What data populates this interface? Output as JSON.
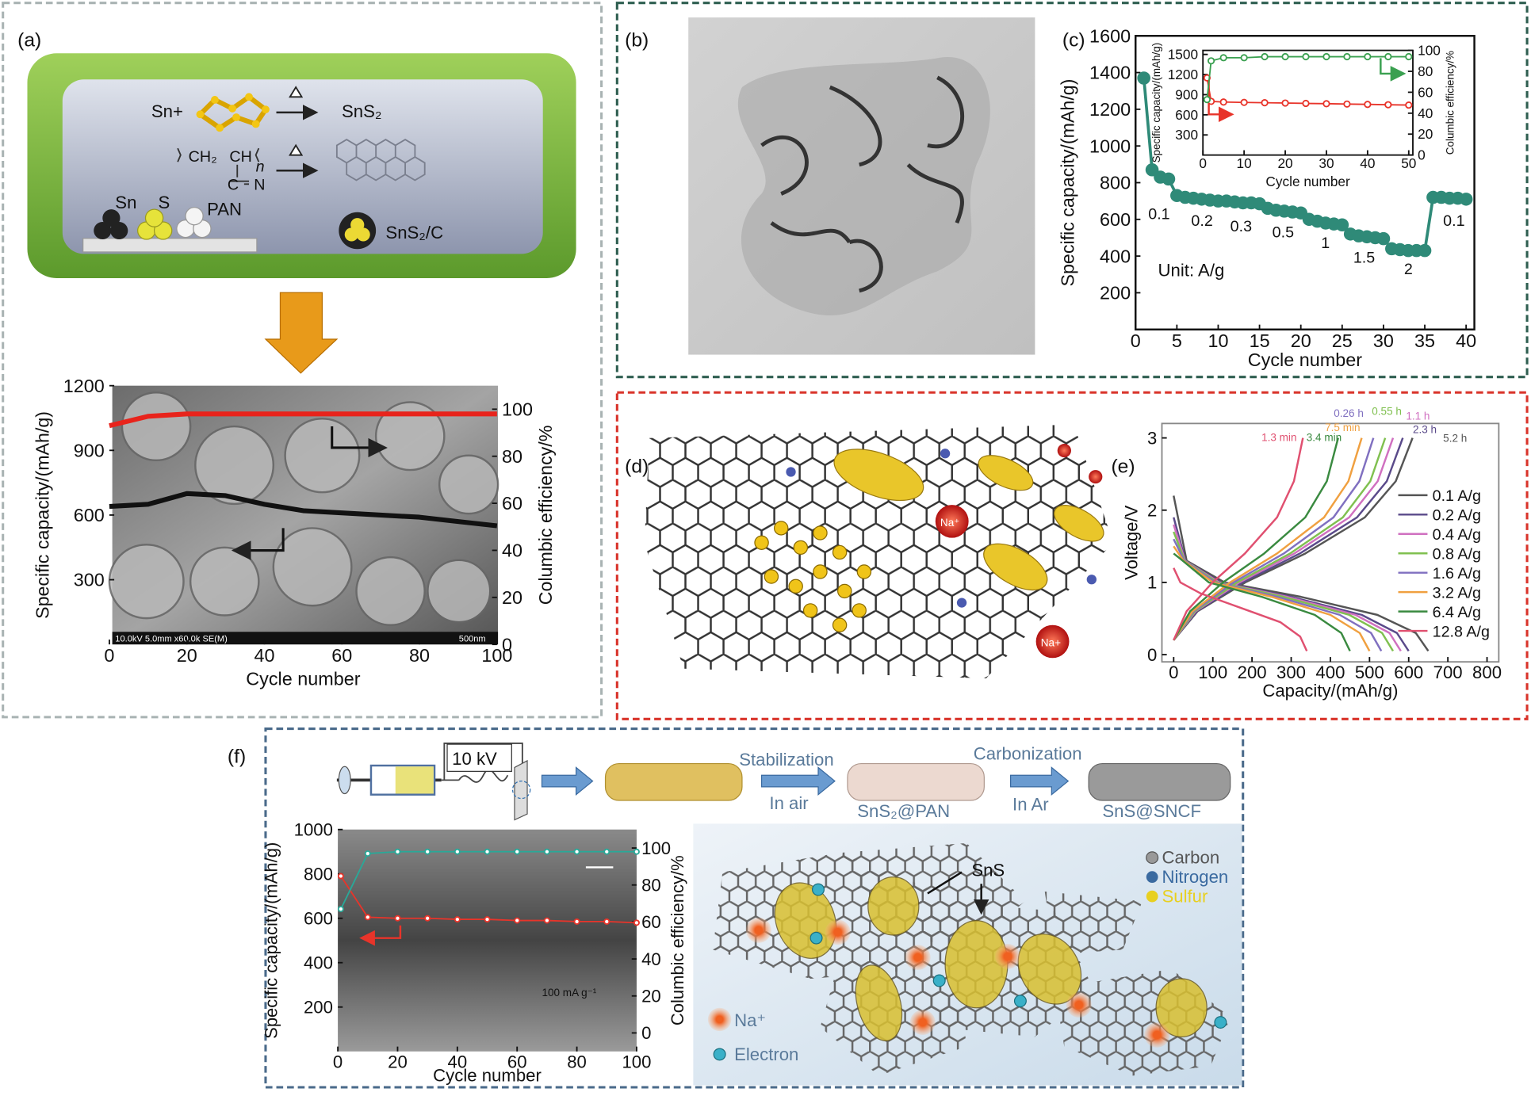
{
  "chart_data": [
    {
      "type": "line",
      "xlabel": "Cycle number",
      "ylabel": "Specific capacity/(mAh/g)",
      "y2label": "Columbic efficiency/%",
      "x": [
        0,
        10,
        20,
        30,
        40,
        50,
        60,
        70,
        80,
        90,
        100
      ],
      "xlim": [
        0,
        100
      ],
      "xticks": [
        0,
        20,
        40,
        60,
        80,
        100
      ],
      "ylim": [
        0,
        1200
      ],
      "yticks": [
        300,
        600,
        900,
        1200
      ],
      "y2lim": [
        0,
        110
      ],
      "y2ticks": [
        0,
        20,
        40,
        60,
        80,
        100
      ],
      "series": [
        {
          "color": "#111111",
          "values": [
            640,
            650,
            700,
            690,
            650,
            620,
            610,
            600,
            590,
            570,
            550
          ]
        },
        {
          "color": "#e8231b",
          "axis": "y2",
          "values": [
            93,
            97,
            98,
            98,
            98,
            98,
            98,
            98,
            98,
            98,
            98
          ]
        }
      ]
    },
    {
      "type": "line",
      "xlabel": "Cycle number",
      "ylabel": "Specific capacity/(mAh/g)",
      "marker": "circle",
      "x": [
        1,
        2,
        3,
        4,
        5,
        6,
        7,
        8,
        9,
        10,
        11,
        12,
        13,
        14,
        15,
        16,
        17,
        18,
        19,
        20,
        21,
        22,
        23,
        24,
        25,
        26,
        27,
        28,
        29,
        30,
        31,
        32,
        33,
        34,
        35,
        36,
        37,
        38,
        39,
        40
      ],
      "xlim": [
        0,
        41
      ],
      "xticks": [
        0,
        5,
        10,
        15,
        20,
        25,
        30,
        35,
        40
      ],
      "ylim": [
        0,
        1600
      ],
      "yticks": [
        200,
        400,
        600,
        800,
        1000,
        1200,
        1400,
        1600
      ],
      "series": [
        {
          "color": "#2f8a78",
          "values": [
            1370,
            870,
            830,
            820,
            730,
            720,
            715,
            710,
            705,
            700,
            700,
            695,
            690,
            690,
            685,
            660,
            650,
            645,
            640,
            635,
            600,
            590,
            580,
            575,
            570,
            520,
            510,
            505,
            500,
            495,
            440,
            435,
            430,
            430,
            430,
            720,
            720,
            715,
            715,
            710
          ]
        }
      ],
      "annotations": [
        "0.1",
        "0.2",
        "0.3",
        "0.5",
        "1",
        "1.5",
        "2",
        "0.1",
        "Unit: A/g"
      ]
    },
    {
      "type": "line",
      "xlabel": "Cycle number",
      "ylabel": "Specific capacity/(mAh/g)",
      "y2label": "Columbic efficiency/%",
      "marker": "circle",
      "x": [
        1,
        2,
        5,
        10,
        15,
        20,
        25,
        30,
        35,
        40,
        45,
        50
      ],
      "xlim": [
        0,
        51
      ],
      "xticks": [
        0,
        10,
        20,
        30,
        40,
        50
      ],
      "ylim": [
        0,
        1560
      ],
      "yticks": [
        300,
        600,
        900,
        1200,
        1500
      ],
      "y2lim": [
        0,
        100
      ],
      "y2ticks": [
        0,
        20,
        40,
        60,
        80,
        100
      ],
      "series": [
        {
          "color": "#e8342a",
          "values": [
            1150,
            800,
            790,
            785,
            780,
            775,
            770,
            765,
            760,
            755,
            750,
            745
          ]
        },
        {
          "color": "#3aa050",
          "axis": "y2",
          "values": [
            53,
            90,
            93,
            93,
            94,
            94,
            94,
            94,
            94,
            94,
            94,
            94
          ]
        }
      ]
    },
    {
      "type": "line",
      "xlabel": "Capacity/(mAh/g)",
      "ylabel": "Voltage/V",
      "xlim": [
        -30,
        830
      ],
      "xticks": [
        0,
        100,
        200,
        300,
        400,
        500,
        600,
        700,
        800
      ],
      "ylim": [
        -0.1,
        3.2
      ],
      "yticks": [
        0,
        1,
        2,
        3
      ],
      "series": [
        {
          "name": "0.1 A/g",
          "color": "#555555",
          "x": [
            0,
            33,
            130,
            325,
            520,
            618,
            650,
            null,
            0,
            61,
            183,
            336,
            488,
            567,
            610
          ],
          "values": [
            2.2,
            1.3,
            1.0,
            0.8,
            0.55,
            0.3,
            0.05,
            null,
            0.2,
            0.6,
            1.0,
            1.4,
            1.9,
            2.4,
            3.0
          ]
        },
        {
          "name": "0.2 A/g",
          "color": "#5a4a8a",
          "x": [
            0,
            30,
            120,
            300,
            480,
            570,
            600,
            null,
            0,
            59,
            176,
            322,
            468,
            544,
            585
          ],
          "values": [
            1.9,
            1.3,
            1.0,
            0.8,
            0.55,
            0.3,
            0.05,
            null,
            0.2,
            0.6,
            1.0,
            1.4,
            1.9,
            2.4,
            3.0
          ]
        },
        {
          "name": "0.4 A/g",
          "color": "#d070c0",
          "x": [
            0,
            29,
            116,
            290,
            464,
            551,
            580,
            null,
            0,
            56,
            168,
            308,
            448,
            521,
            560
          ],
          "values": [
            1.8,
            1.3,
            1.0,
            0.8,
            0.55,
            0.3,
            0.05,
            null,
            0.2,
            0.6,
            1.0,
            1.4,
            1.9,
            2.4,
            3.0
          ]
        },
        {
          "name": "0.8 A/g",
          "color": "#80c050",
          "x": [
            0,
            28,
            112,
            280,
            448,
            532,
            560,
            null,
            0,
            54,
            162,
            297,
            432,
            502,
            540
          ],
          "values": [
            1.7,
            1.3,
            1.0,
            0.8,
            0.55,
            0.3,
            0.05,
            null,
            0.2,
            0.6,
            1.0,
            1.4,
            1.9,
            2.4,
            3.0
          ]
        },
        {
          "name": "1.6 A/g",
          "color": "#8070c0",
          "x": [
            0,
            27,
            106,
            265,
            424,
            504,
            530,
            null,
            0,
            51,
            153,
            281,
            408,
            474,
            510
          ],
          "values": [
            1.6,
            1.3,
            1.0,
            0.8,
            0.55,
            0.3,
            0.05,
            null,
            0.2,
            0.6,
            1.0,
            1.4,
            1.9,
            2.4,
            3.0
          ]
        },
        {
          "name": "3.2 A/g",
          "color": "#f0a040",
          "x": [
            0,
            25,
            100,
            250,
            400,
            475,
            500,
            null,
            0,
            48,
            144,
            264,
            384,
            446,
            480
          ],
          "values": [
            1.5,
            1.3,
            1.0,
            0.8,
            0.55,
            0.3,
            0.05,
            null,
            0.2,
            0.6,
            1.0,
            1.4,
            1.9,
            2.4,
            3.0
          ]
        },
        {
          "name": "6.4 A/g",
          "color": "#3a8a40",
          "x": [
            0,
            23,
            90,
            225,
            360,
            428,
            450,
            null,
            0,
            42,
            126,
            231,
            336,
            391,
            420
          ],
          "values": [
            1.4,
            1.3,
            1.0,
            0.8,
            0.55,
            0.3,
            0.05,
            null,
            0.2,
            0.6,
            1.0,
            1.4,
            1.9,
            2.4,
            3.0
          ]
        },
        {
          "name": "12.8 A/g",
          "color": "#e05070",
          "x": [
            0,
            17,
            68,
            170,
            272,
            323,
            340,
            null,
            0,
            33,
            99,
            182,
            264,
            307,
            330
          ],
          "values": [
            1.2,
            1.0,
            0.85,
            0.65,
            0.45,
            0.25,
            0.05,
            null,
            0.2,
            0.6,
            1.0,
            1.4,
            1.9,
            2.4,
            3.0
          ]
        }
      ],
      "annotations": [
        {
          "text": "1.3 min",
          "color": "#e05070"
        },
        {
          "text": "3.4 min",
          "color": "#3a8a40"
        },
        {
          "text": "7.5 min",
          "color": "#f0a040"
        },
        {
          "text": "0.26 h",
          "color": "#8070c0"
        },
        {
          "text": "0.55 h",
          "color": "#80c050"
        },
        {
          "text": "1.1 h",
          "color": "#d070c0"
        },
        {
          "text": "2.3 h",
          "color": "#5a4a8a"
        },
        {
          "text": "5.2 h",
          "color": "#555555"
        }
      ]
    },
    {
      "type": "line",
      "xlabel": "Cycle number",
      "ylabel": "Specific capacity/(mAh/g)",
      "y2label": "Columbic efficiency/%",
      "marker": "circle",
      "x": [
        1,
        10,
        20,
        30,
        40,
        50,
        60,
        70,
        80,
        90,
        100
      ],
      "xlim": [
        0,
        100
      ],
      "xticks": [
        0,
        20,
        40,
        60,
        80,
        100
      ],
      "ylim": [
        0,
        1000
      ],
      "yticks": [
        200,
        400,
        600,
        800,
        1000
      ],
      "y2lim": [
        -10,
        110
      ],
      "y2ticks": [
        0,
        20,
        40,
        60,
        80,
        100
      ],
      "series": [
        {
          "color": "#e8342a",
          "values": [
            790,
            605,
            600,
            600,
            595,
            595,
            590,
            590,
            585,
            585,
            580
          ]
        },
        {
          "color": "#2aa898",
          "axis": "y2",
          "values": [
            67,
            97,
            98,
            98,
            98,
            98,
            98,
            98,
            98,
            98,
            98
          ]
        }
      ]
    }
  ],
  "figure": {
    "labels": [
      "(a)",
      "(b)",
      "(c)",
      "(d)",
      "(e)",
      "(f)"
    ],
    "scheme_a": {
      "sn_plus": "Sn+",
      "sns2": "SnS₂",
      "ch2": "CH₂",
      "ch": "CH",
      "n": "n",
      "c": "C",
      "nitrogen": "N",
      "sn": "Sn",
      "s": "S",
      "pan": "PAN",
      "product": "SnS₂/C",
      "sem_caption": "10.0kV 5.0mm x60.0k SE(M)",
      "scale": "500nm"
    },
    "panel_d": {
      "na1": "Na⁺",
      "na2": "Na+"
    },
    "scheme_f": {
      "voltage": "10 kV",
      "stabilization": "Stabilization",
      "in_air": "In air",
      "pan_fiber": "SnS₂@PAN",
      "carbonization": "Carbonization",
      "in_ar": "In Ar",
      "sncf": "SnS@SNCF",
      "current": "100 mA g⁻¹",
      "sns": "SnS",
      "carbon": "Carbon",
      "nitrogen": "Nitrogen",
      "sulfur": "Sulfur",
      "na": "Na⁺",
      "electron": "Electron"
    }
  }
}
